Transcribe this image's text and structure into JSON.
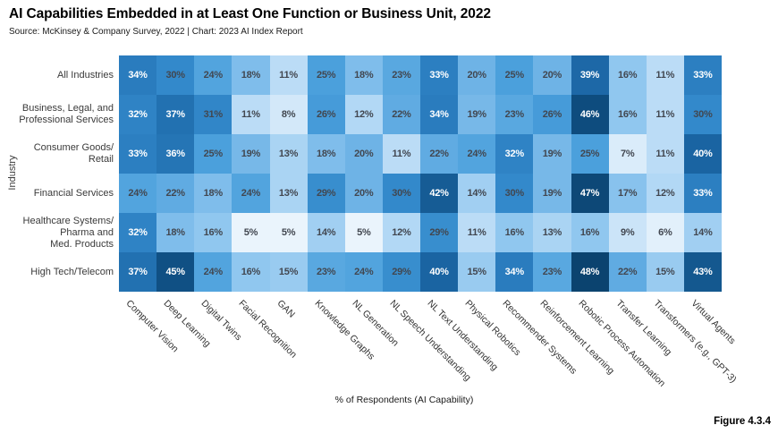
{
  "header": {
    "title": "AI Capabilities Embedded in at Least One Function or Business Unit, 2022",
    "source": "Source: McKinsey & Company Survey, 2022 | Chart: 2023 AI Index Report"
  },
  "figure_label": "Figure 4.3.4",
  "chart_data": {
    "type": "heatmap",
    "title": "AI Capabilities Embedded in at Least One Function or Business Unit, 2022",
    "xlabel": "% of Respondents (AI Capability)",
    "ylabel": "Industry",
    "unit": "%",
    "value_suffix": "%",
    "columns": [
      "Computer Vision",
      "Deep Learning",
      "Digital Twins",
      "Facial Recognition",
      "GAN",
      "Knowledge Graphs",
      "NL Generation",
      "NL Speech Understanding",
      "NL Text Understanding",
      "Physical Robotics",
      "Recommender Systems",
      "Reinforcement Learning",
      "Robotic Process Automation",
      "Transfer Learning",
      "Transformers (e.g., GPT-3)",
      "Virtual Agents"
    ],
    "rows": [
      "All Industries",
      "Business, Legal, and\nProfessional Services",
      "Consumer Goods/\nRetail",
      "Financial Services",
      "Healthcare Systems/\nPharma and\nMed. Products",
      "High Tech/Telecom"
    ],
    "values": [
      [
        34,
        30,
        24,
        18,
        11,
        25,
        18,
        23,
        33,
        20,
        25,
        20,
        39,
        16,
        11,
        33
      ],
      [
        32,
        37,
        31,
        11,
        8,
        26,
        12,
        22,
        34,
        19,
        23,
        26,
        46,
        16,
        11,
        30
      ],
      [
        33,
        36,
        25,
        19,
        13,
        18,
        20,
        11,
        22,
        24,
        32,
        19,
        25,
        7,
        11,
        40
      ],
      [
        24,
        22,
        18,
        24,
        13,
        29,
        20,
        30,
        42,
        14,
        30,
        19,
        47,
        17,
        12,
        33
      ],
      [
        32,
        18,
        16,
        5,
        5,
        14,
        5,
        12,
        29,
        11,
        16,
        13,
        16,
        9,
        6,
        14
      ],
      [
        37,
        45,
        24,
        16,
        15,
        23,
        24,
        29,
        40,
        15,
        34,
        23,
        48,
        22,
        15,
        43
      ]
    ],
    "value_range": [
      5,
      48
    ],
    "color_anchors": [
      [
        5,
        "#EAF4FC"
      ],
      [
        11,
        "#BBDCF6"
      ],
      [
        16,
        "#90C7EF"
      ],
      [
        20,
        "#6EB3E6"
      ],
      [
        25,
        "#4BA0DC"
      ],
      [
        30,
        "#3389CB"
      ],
      [
        34,
        "#2A7CBE"
      ],
      [
        37,
        "#2271B1"
      ],
      [
        40,
        "#1A64A2"
      ],
      [
        43,
        "#14588F"
      ],
      [
        46,
        "#0E4C7E"
      ],
      [
        48,
        "#0B436F"
      ]
    ],
    "label_white_threshold": 32,
    "dark_text_color": "#424750",
    "light_text_color": "#FFFFFF",
    "legend": "none",
    "grid": false
  }
}
